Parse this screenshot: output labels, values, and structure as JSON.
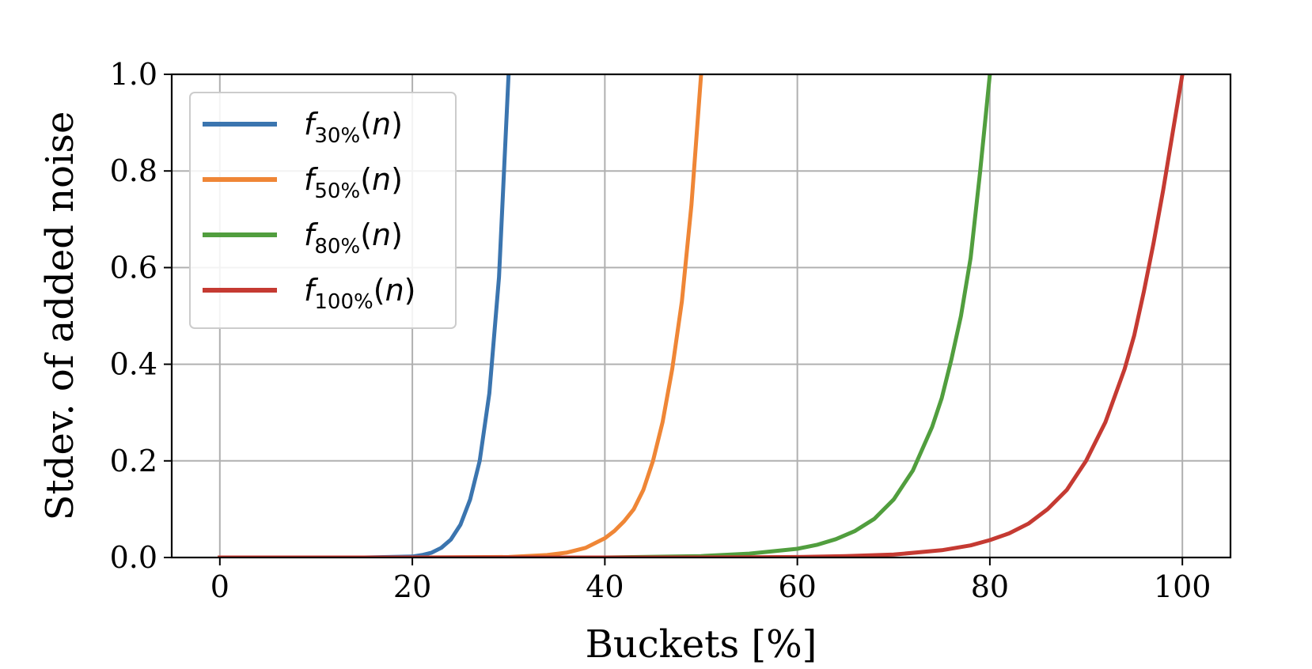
{
  "chart_data": {
    "type": "line",
    "xlabel": "Buckets [%]",
    "ylabel": "Stdev. of added noise",
    "xlim": [
      -5,
      105
    ],
    "ylim": [
      0,
      1.0
    ],
    "xticks": [
      0,
      20,
      40,
      60,
      80,
      100
    ],
    "xtick_labels": [
      "0",
      "20",
      "40",
      "60",
      "80",
      "100"
    ],
    "yticks": [
      0,
      0.2,
      0.4,
      0.6,
      0.8,
      1.0
    ],
    "ytick_labels": [
      "0.0",
      "0.2",
      "0.4",
      "0.6",
      "0.8",
      "1.0"
    ],
    "grid": true,
    "legend_position": "top-left",
    "series": [
      {
        "name": "f30%(n)",
        "base": "f",
        "subscript": "30%",
        "suffix": "(n)",
        "color": "#3b75af",
        "x": [
          0,
          10,
          15,
          20,
          21,
          22,
          23,
          24,
          25,
          26,
          27,
          28,
          29,
          30
        ],
        "y": [
          0,
          0,
          0,
          0.002,
          0.005,
          0.01,
          0.02,
          0.037,
          0.068,
          0.12,
          0.2,
          0.34,
          0.58,
          1.0
        ]
      },
      {
        "name": "f50%(n)",
        "base": "f",
        "subscript": "50%",
        "suffix": "(n)",
        "color": "#ef8636",
        "x": [
          0,
          20,
          30,
          34,
          36,
          38,
          40,
          41,
          42,
          43,
          44,
          45,
          46,
          47,
          48,
          49,
          50
        ],
        "y": [
          0,
          0,
          0.001,
          0.005,
          0.01,
          0.02,
          0.04,
          0.055,
          0.075,
          0.1,
          0.14,
          0.2,
          0.28,
          0.39,
          0.53,
          0.73,
          1.0
        ]
      },
      {
        "name": "f80%(n)",
        "base": "f",
        "subscript": "80%",
        "suffix": "(n)",
        "color": "#519e3e",
        "x": [
          0,
          40,
          50,
          55,
          60,
          62,
          64,
          66,
          68,
          70,
          72,
          74,
          75,
          76,
          77,
          78,
          79,
          80
        ],
        "y": [
          0,
          0,
          0.003,
          0.008,
          0.018,
          0.026,
          0.038,
          0.055,
          0.08,
          0.12,
          0.18,
          0.27,
          0.33,
          0.41,
          0.5,
          0.62,
          0.8,
          1.0
        ]
      },
      {
        "name": "f100%(n)",
        "base": "f",
        "subscript": "100%",
        "suffix": "(n)",
        "color": "#c53a32",
        "x": [
          0,
          50,
          60,
          65,
          70,
          75,
          78,
          80,
          82,
          84,
          86,
          88,
          90,
          92,
          94,
          95,
          96,
          97,
          98,
          99,
          100
        ],
        "y": [
          0,
          0,
          0.001,
          0.003,
          0.006,
          0.015,
          0.025,
          0.036,
          0.05,
          0.07,
          0.1,
          0.14,
          0.2,
          0.28,
          0.39,
          0.46,
          0.55,
          0.65,
          0.76,
          0.88,
          1.0
        ]
      }
    ]
  }
}
